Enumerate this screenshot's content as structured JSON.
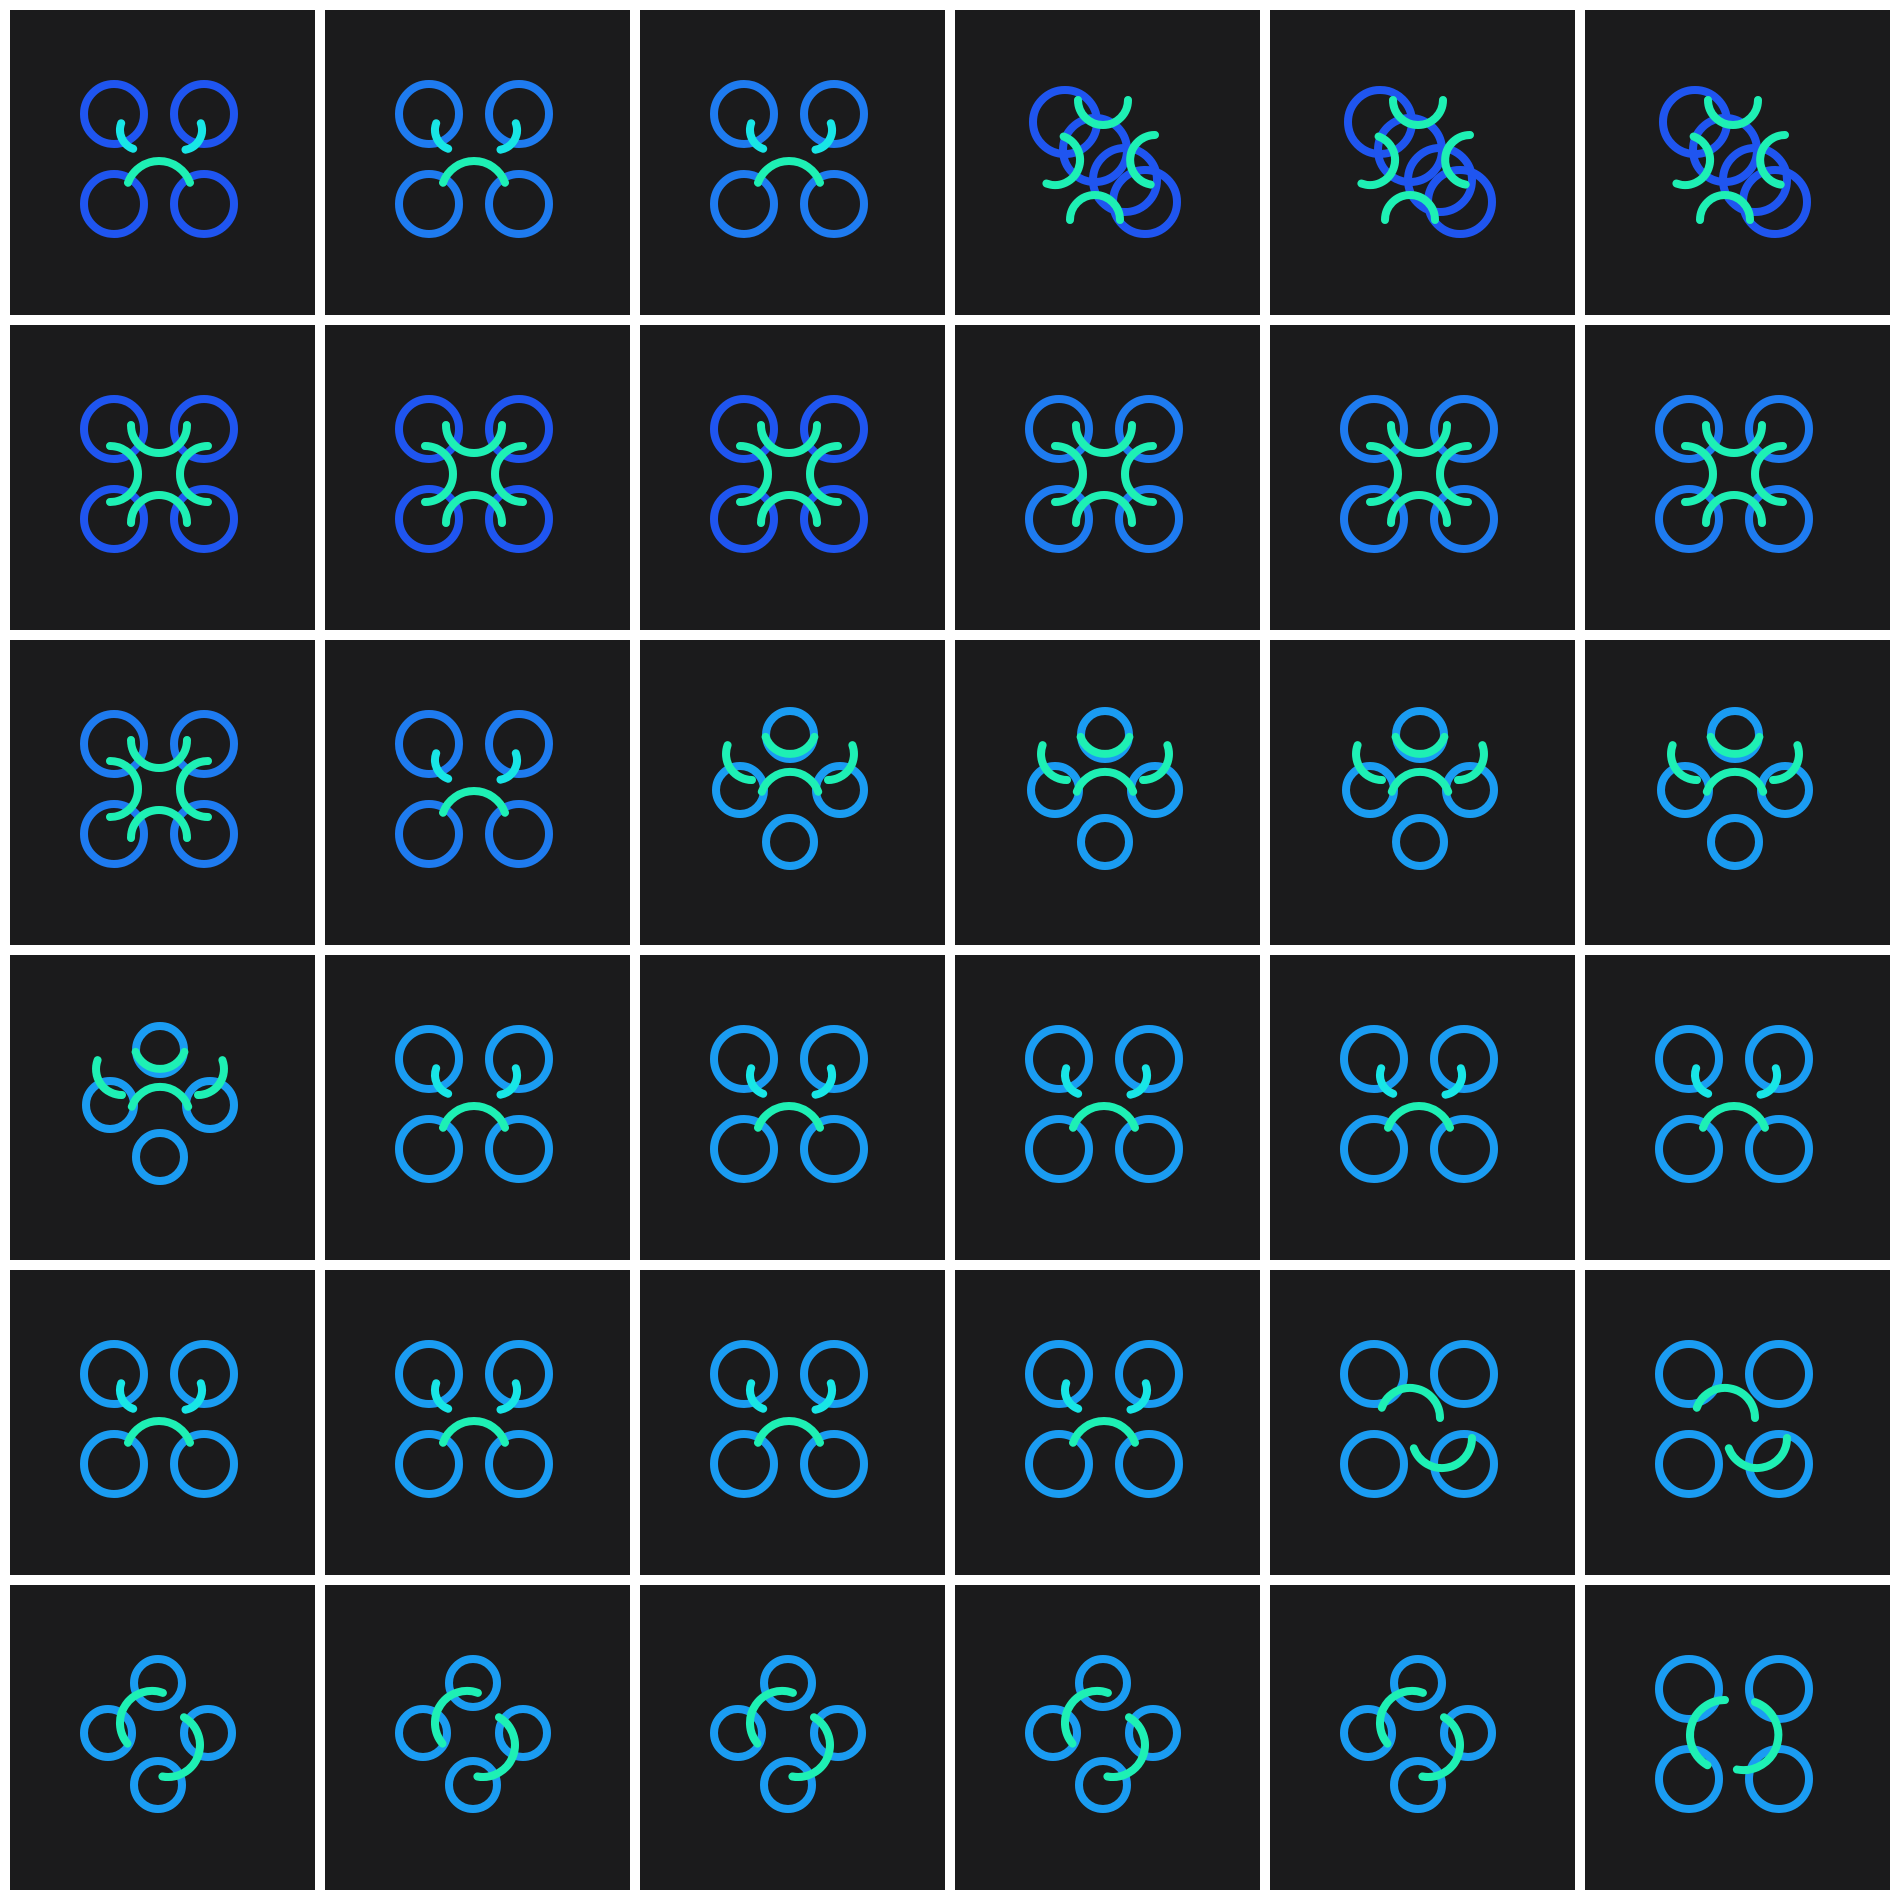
{
  "colors": {
    "background": "#1b1b1c",
    "separator": "#ffffff",
    "ring_blue_deep": "#1f55f0",
    "ring_blue": "#1e7bf0",
    "ring_blue_light": "#1a9cf2",
    "arc_green": "#1ef0b4",
    "arc_cyan": "#18e6e6"
  },
  "grid": {
    "columns": 6,
    "rows": 6
  },
  "frames": [
    {
      "layout": "quad",
      "ring": "ring_blue_deep",
      "arcs": "single_arch",
      "icon": "drone-outline-icon"
    },
    {
      "layout": "quad",
      "ring": "ring_blue",
      "arcs": "single_arch",
      "icon": "drone-outline-icon"
    },
    {
      "layout": "quad",
      "ring": "ring_blue",
      "arcs": "single_arch",
      "icon": "drone-outline-icon"
    },
    {
      "layout": "diagonal",
      "ring": "ring_blue_deep",
      "arcs": "four_arcs",
      "icon": "drone-tilted-icon"
    },
    {
      "layout": "diagonal",
      "ring": "ring_blue_deep",
      "arcs": "four_arcs",
      "icon": "drone-tilted-icon"
    },
    {
      "layout": "diagonal",
      "ring": "ring_blue_deep",
      "arcs": "four_arcs",
      "icon": "drone-tilted-icon"
    },
    {
      "layout": "quad",
      "ring": "ring_blue_deep",
      "arcs": "cross_arcs",
      "icon": "drone-cross-icon"
    },
    {
      "layout": "quad",
      "ring": "ring_blue_deep",
      "arcs": "cross_arcs",
      "icon": "drone-cross-icon"
    },
    {
      "layout": "quad",
      "ring": "ring_blue_deep",
      "arcs": "cross_arcs",
      "icon": "drone-cross-icon"
    },
    {
      "layout": "quad",
      "ring": "ring_blue",
      "arcs": "cross_arcs",
      "icon": "drone-cross-icon"
    },
    {
      "layout": "quad",
      "ring": "ring_blue",
      "arcs": "cross_arcs",
      "icon": "drone-cross-icon"
    },
    {
      "layout": "quad",
      "ring": "ring_blue",
      "arcs": "cross_arcs",
      "icon": "drone-cross-icon"
    },
    {
      "layout": "quad",
      "ring": "ring_blue",
      "arcs": "cross_arcs",
      "icon": "drone-cross-icon"
    },
    {
      "layout": "quad",
      "ring": "ring_blue",
      "arcs": "single_arch",
      "icon": "drone-outline-icon"
    },
    {
      "layout": "pentagon",
      "ring": "ring_blue_light",
      "arcs": "pentagon_arcs",
      "icon": "drone-five-rotor-icon"
    },
    {
      "layout": "pentagon",
      "ring": "ring_blue_light",
      "arcs": "pentagon_arcs",
      "icon": "drone-five-rotor-icon"
    },
    {
      "layout": "pentagon",
      "ring": "ring_blue_light",
      "arcs": "pentagon_arcs",
      "icon": "drone-five-rotor-icon"
    },
    {
      "layout": "pentagon",
      "ring": "ring_blue_light",
      "arcs": "pentagon_arcs",
      "icon": "drone-five-rotor-icon"
    },
    {
      "layout": "pentagon",
      "ring": "ring_blue_light",
      "arcs": "pentagon_arcs",
      "icon": "drone-five-rotor-icon"
    },
    {
      "layout": "quad",
      "ring": "ring_blue_light",
      "arcs": "single_arch",
      "icon": "drone-outline-icon"
    },
    {
      "layout": "quad",
      "ring": "ring_blue_light",
      "arcs": "single_arch",
      "icon": "drone-outline-icon"
    },
    {
      "layout": "quad",
      "ring": "ring_blue_light",
      "arcs": "single_arch",
      "icon": "drone-outline-icon"
    },
    {
      "layout": "quad",
      "ring": "ring_blue_light",
      "arcs": "single_arch",
      "icon": "drone-outline-icon"
    },
    {
      "layout": "quad",
      "ring": "ring_blue_light",
      "arcs": "single_arch",
      "icon": "drone-outline-icon"
    },
    {
      "layout": "quad",
      "ring": "ring_blue_light",
      "arcs": "single_arch",
      "icon": "drone-outline-icon"
    },
    {
      "layout": "quad",
      "ring": "ring_blue_light",
      "arcs": "single_arch",
      "icon": "drone-outline-icon"
    },
    {
      "layout": "quad",
      "ring": "ring_blue_light",
      "arcs": "single_arch",
      "icon": "drone-outline-icon"
    },
    {
      "layout": "quad",
      "ring": "ring_blue_light",
      "arcs": "single_arch",
      "icon": "drone-outline-icon"
    },
    {
      "layout": "quad",
      "ring": "ring_blue_light",
      "arcs": "wave",
      "icon": "drone-wave-icon"
    },
    {
      "layout": "quad",
      "ring": "ring_blue_light",
      "arcs": "wave",
      "icon": "drone-wave-icon"
    },
    {
      "layout": "diamond",
      "ring": "ring_blue_light",
      "arcs": "spiral",
      "icon": "drone-spiral-icon"
    },
    {
      "layout": "diamond",
      "ring": "ring_blue_light",
      "arcs": "spiral",
      "icon": "drone-spiral-icon"
    },
    {
      "layout": "diamond",
      "ring": "ring_blue_light",
      "arcs": "spiral",
      "icon": "drone-spiral-icon"
    },
    {
      "layout": "diamond",
      "ring": "ring_blue_light",
      "arcs": "spiral",
      "icon": "drone-spiral-icon"
    },
    {
      "layout": "diamond",
      "ring": "ring_blue_light",
      "arcs": "spiral",
      "icon": "drone-spiral-icon"
    },
    {
      "layout": "quad",
      "ring": "ring_blue_light",
      "arcs": "spiral",
      "icon": "drone-spiral-icon"
    }
  ]
}
